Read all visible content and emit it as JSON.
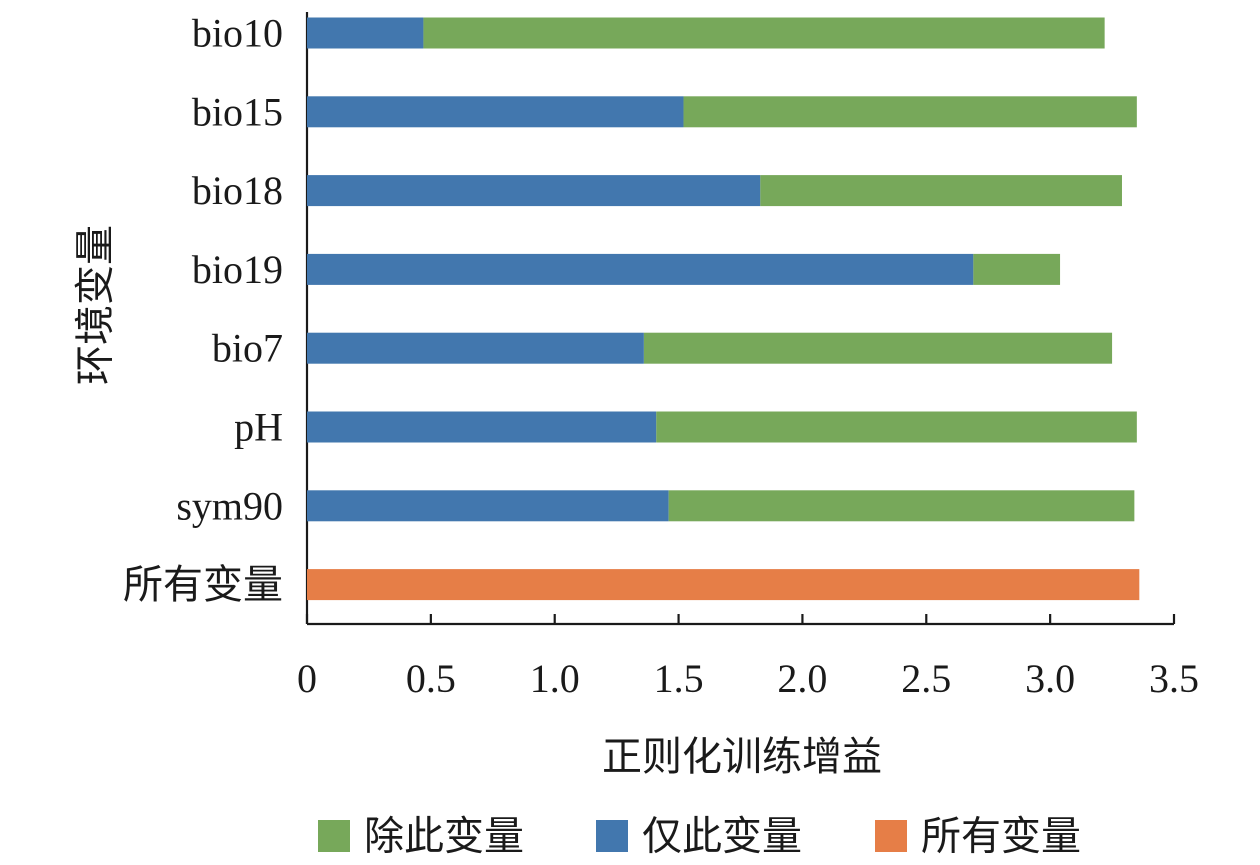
{
  "chart_data": {
    "type": "bar",
    "orientation": "horizontal",
    "stacked": true,
    "title": "",
    "xlabel": "正则化训练增益",
    "ylabel": "环境变量",
    "xlim": [
      0,
      3.5
    ],
    "xticks": [
      "0",
      "0.5",
      "1.0",
      "1.5",
      "2.0",
      "2.5",
      "3.0",
      "3.5"
    ],
    "xtick_values": [
      0,
      0.5,
      1.0,
      1.5,
      2.0,
      2.5,
      3.0,
      3.5
    ],
    "categories": [
      "bio10",
      "bio15",
      "bio18",
      "bio19",
      "bio7",
      "pH",
      "sym90",
      "所有变量"
    ],
    "series": [
      {
        "name": "仅此变量",
        "color": "#4277ae",
        "values": [
          0.47,
          1.52,
          1.83,
          2.69,
          1.36,
          1.41,
          1.46,
          null
        ]
      },
      {
        "name": "除此变量",
        "color": "#77a85a",
        "values": [
          2.75,
          1.83,
          1.46,
          0.35,
          1.89,
          1.94,
          1.88,
          null
        ]
      },
      {
        "name": "所有变量",
        "color": "#e67e47",
        "values": [
          null,
          null,
          null,
          null,
          null,
          null,
          null,
          3.36
        ]
      }
    ],
    "legend": {
      "position": "bottom",
      "order": [
        "除此变量",
        "仅此变量",
        "所有变量"
      ]
    },
    "grid": false
  }
}
